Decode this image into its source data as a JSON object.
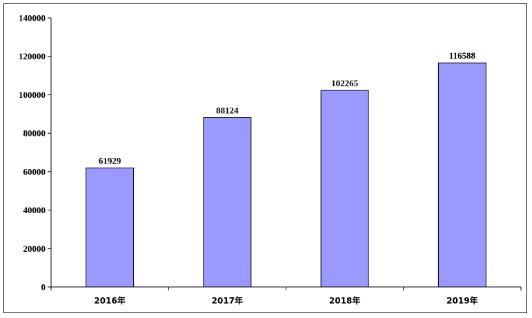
{
  "chart_data": {
    "type": "bar",
    "categories": [
      "2016年",
      "2017年",
      "2018年",
      "2019年"
    ],
    "values": [
      61929,
      88124,
      102265,
      116588
    ],
    "data_labels": [
      "61929",
      "88124",
      "102265",
      "116588"
    ],
    "ylim": [
      0,
      140000
    ],
    "yticks": [
      0,
      20000,
      40000,
      60000,
      80000,
      100000,
      120000,
      140000
    ],
    "ytick_labels": [
      "0",
      "20000",
      "40000",
      "60000",
      "80000",
      "100000",
      "120000",
      "140000"
    ],
    "bar_color": "#9999ff",
    "grid": false,
    "legend": "none"
  }
}
